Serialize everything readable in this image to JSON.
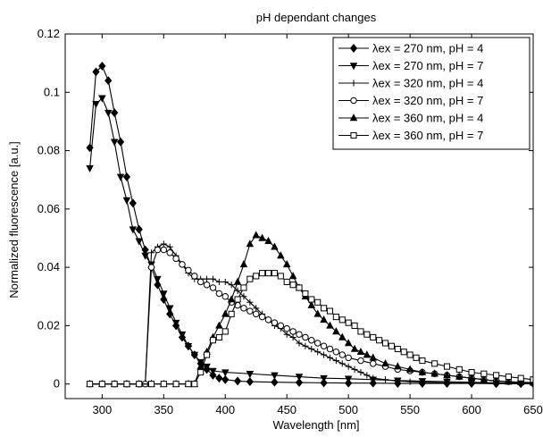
{
  "chart_data": {
    "type": "line",
    "title": "pH dependant changes",
    "xlabel": "Wavelength [nm]",
    "ylabel": "Normalized fluorescence [a.u.]",
    "xlim": [
      270,
      650
    ],
    "ylim": [
      -0.005,
      0.12
    ],
    "xticks": [
      300,
      350,
      400,
      450,
      500,
      550,
      600,
      650
    ],
    "yticks": [
      0,
      0.02,
      0.04,
      0.06,
      0.08,
      0.1,
      0.12
    ],
    "grid": false,
    "legend_position": "top-right",
    "series": [
      {
        "name": "λex = 270 nm, pH = 4",
        "marker": "diamond",
        "points": [
          [
            290,
            0.081
          ],
          [
            295,
            0.107
          ],
          [
            300,
            0.109
          ],
          [
            305,
            0.104
          ],
          [
            310,
            0.093
          ],
          [
            315,
            0.083
          ],
          [
            320,
            0.071
          ],
          [
            325,
            0.062
          ],
          [
            330,
            0.053
          ],
          [
            335,
            0.046
          ],
          [
            340,
            0.04
          ],
          [
            345,
            0.034
          ],
          [
            350,
            0.029
          ],
          [
            355,
            0.024
          ],
          [
            360,
            0.02
          ],
          [
            365,
            0.016
          ],
          [
            370,
            0.013
          ],
          [
            375,
            0.01
          ],
          [
            380,
            0.007
          ],
          [
            385,
            0.005
          ],
          [
            390,
            0.003
          ],
          [
            395,
            0.002
          ],
          [
            400,
            0.0015
          ],
          [
            410,
            0.001
          ],
          [
            420,
            0.0008
          ],
          [
            440,
            0.0006
          ],
          [
            460,
            0.0005
          ],
          [
            480,
            0.0004
          ],
          [
            500,
            0.0003
          ],
          [
            520,
            0.0003
          ],
          [
            540,
            0.0002
          ],
          [
            560,
            0.0002
          ],
          [
            580,
            0.0002
          ],
          [
            600,
            0.0002
          ],
          [
            620,
            0.0001
          ],
          [
            640,
            0.0001
          ],
          [
            650,
            0.0001
          ]
        ]
      },
      {
        "name": "λex = 270 nm, pH = 7",
        "marker": "triangle-down",
        "points": [
          [
            290,
            0.074
          ],
          [
            295,
            0.096
          ],
          [
            300,
            0.098
          ],
          [
            305,
            0.093
          ],
          [
            310,
            0.083
          ],
          [
            315,
            0.071
          ],
          [
            320,
            0.063
          ],
          [
            325,
            0.053
          ],
          [
            330,
            0.049
          ],
          [
            335,
            0.044
          ],
          [
            340,
            0.041
          ],
          [
            345,
            0.036
          ],
          [
            350,
            0.031
          ],
          [
            355,
            0.026
          ],
          [
            360,
            0.021
          ],
          [
            365,
            0.017
          ],
          [
            370,
            0.013
          ],
          [
            375,
            0.01
          ],
          [
            380,
            0.0075
          ],
          [
            385,
            0.006
          ],
          [
            390,
            0.0045
          ],
          [
            400,
            0.004
          ],
          [
            420,
            0.0035
          ],
          [
            440,
            0.003
          ],
          [
            460,
            0.0025
          ],
          [
            480,
            0.002
          ],
          [
            500,
            0.0018
          ],
          [
            520,
            0.0015
          ],
          [
            540,
            0.0012
          ],
          [
            560,
            0.001
          ],
          [
            580,
            0.0008
          ],
          [
            600,
            0.0006
          ],
          [
            620,
            0.0004
          ],
          [
            640,
            0.0003
          ],
          [
            650,
            0.0003
          ]
        ]
      },
      {
        "name": "λex = 320 nm, pH = 4",
        "marker": "plus",
        "points": [
          [
            290,
            0
          ],
          [
            300,
            0
          ],
          [
            310,
            0
          ],
          [
            320,
            0
          ],
          [
            330,
            0
          ],
          [
            335,
            0
          ],
          [
            340,
            0.045
          ],
          [
            345,
            0.047
          ],
          [
            350,
            0.048
          ],
          [
            355,
            0.047
          ],
          [
            360,
            0.044
          ],
          [
            365,
            0.041
          ],
          [
            370,
            0.038
          ],
          [
            375,
            0.036
          ],
          [
            380,
            0.036
          ],
          [
            385,
            0.036
          ],
          [
            390,
            0.036
          ],
          [
            395,
            0.035
          ],
          [
            400,
            0.035
          ],
          [
            405,
            0.034
          ],
          [
            410,
            0.032
          ],
          [
            415,
            0.03
          ],
          [
            420,
            0.028
          ],
          [
            425,
            0.026
          ],
          [
            430,
            0.024
          ],
          [
            435,
            0.022
          ],
          [
            440,
            0.02
          ],
          [
            445,
            0.019
          ],
          [
            450,
            0.017
          ],
          [
            455,
            0.016
          ],
          [
            460,
            0.014
          ],
          [
            465,
            0.013
          ],
          [
            470,
            0.012
          ],
          [
            475,
            0.011
          ],
          [
            480,
            0.01
          ],
          [
            485,
            0.009
          ],
          [
            490,
            0.008
          ],
          [
            495,
            0.007
          ],
          [
            500,
            0.006
          ],
          [
            505,
            0.005
          ],
          [
            510,
            0.004
          ],
          [
            515,
            0.003
          ],
          [
            520,
            0.002
          ],
          [
            530,
            0.0015
          ],
          [
            540,
            0.001
          ],
          [
            550,
            0.0008
          ],
          [
            560,
            0.0006
          ],
          [
            580,
            0.0004
          ],
          [
            600,
            0.0003
          ],
          [
            620,
            0.0002
          ],
          [
            640,
            0.0001
          ],
          [
            650,
            0.0001
          ]
        ]
      },
      {
        "name": "λex = 320 nm, pH = 7",
        "marker": "circle",
        "points": [
          [
            290,
            0
          ],
          [
            300,
            0
          ],
          [
            310,
            0
          ],
          [
            320,
            0
          ],
          [
            330,
            0
          ],
          [
            335,
            0
          ],
          [
            340,
            0.04
          ],
          [
            345,
            0.046
          ],
          [
            350,
            0.046
          ],
          [
            355,
            0.045
          ],
          [
            360,
            0.043
          ],
          [
            365,
            0.041
          ],
          [
            370,
            0.039
          ],
          [
            375,
            0.037
          ],
          [
            380,
            0.035
          ],
          [
            385,
            0.034
          ],
          [
            390,
            0.033
          ],
          [
            395,
            0.031
          ],
          [
            400,
            0.03
          ],
          [
            405,
            0.028
          ],
          [
            410,
            0.027
          ],
          [
            415,
            0.026
          ],
          [
            420,
            0.025
          ],
          [
            425,
            0.024
          ],
          [
            430,
            0.023
          ],
          [
            435,
            0.022
          ],
          [
            440,
            0.021
          ],
          [
            445,
            0.02
          ],
          [
            450,
            0.019
          ],
          [
            455,
            0.018
          ],
          [
            460,
            0.017
          ],
          [
            465,
            0.016
          ],
          [
            470,
            0.015
          ],
          [
            475,
            0.014
          ],
          [
            480,
            0.013
          ],
          [
            485,
            0.012
          ],
          [
            490,
            0.011
          ],
          [
            495,
            0.01
          ],
          [
            500,
            0.009
          ],
          [
            510,
            0.008
          ],
          [
            520,
            0.007
          ],
          [
            530,
            0.006
          ],
          [
            540,
            0.005
          ],
          [
            550,
            0.0045
          ],
          [
            560,
            0.004
          ],
          [
            570,
            0.0035
          ],
          [
            580,
            0.003
          ],
          [
            590,
            0.0025
          ],
          [
            600,
            0.002
          ],
          [
            610,
            0.0015
          ],
          [
            620,
            0.001
          ],
          [
            630,
            0.0008
          ],
          [
            640,
            0.0005
          ],
          [
            650,
            0.0003
          ]
        ]
      },
      {
        "name": "λex = 360 nm, pH = 4",
        "marker": "triangle-up",
        "points": [
          [
            290,
            0
          ],
          [
            300,
            0
          ],
          [
            310,
            0
          ],
          [
            320,
            0
          ],
          [
            330,
            0
          ],
          [
            340,
            0
          ],
          [
            350,
            0
          ],
          [
            360,
            0
          ],
          [
            370,
            0
          ],
          [
            375,
            0
          ],
          [
            380,
            0.006
          ],
          [
            385,
            0.011
          ],
          [
            390,
            0.016
          ],
          [
            395,
            0.02
          ],
          [
            400,
            0.024
          ],
          [
            405,
            0.029
          ],
          [
            410,
            0.035
          ],
          [
            415,
            0.041
          ],
          [
            420,
            0.048
          ],
          [
            425,
            0.051
          ],
          [
            430,
            0.05
          ],
          [
            435,
            0.049
          ],
          [
            440,
            0.047
          ],
          [
            445,
            0.044
          ],
          [
            450,
            0.041
          ],
          [
            455,
            0.037
          ],
          [
            460,
            0.033
          ],
          [
            465,
            0.03
          ],
          [
            470,
            0.027
          ],
          [
            475,
            0.024
          ],
          [
            480,
            0.022
          ],
          [
            485,
            0.02
          ],
          [
            490,
            0.018
          ],
          [
            495,
            0.016
          ],
          [
            500,
            0.014
          ],
          [
            505,
            0.012
          ],
          [
            510,
            0.011
          ],
          [
            515,
            0.01
          ],
          [
            520,
            0.009
          ],
          [
            530,
            0.007
          ],
          [
            540,
            0.006
          ],
          [
            550,
            0.005
          ],
          [
            560,
            0.004
          ],
          [
            570,
            0.0035
          ],
          [
            580,
            0.003
          ],
          [
            590,
            0.0025
          ],
          [
            600,
            0.002
          ],
          [
            610,
            0.0015
          ],
          [
            620,
            0.001
          ],
          [
            630,
            0.0008
          ],
          [
            640,
            0.0006
          ],
          [
            650,
            0.0005
          ]
        ]
      },
      {
        "name": "λex = 360 nm, pH = 7",
        "marker": "square",
        "points": [
          [
            290,
            0
          ],
          [
            300,
            0
          ],
          [
            310,
            0
          ],
          [
            320,
            0
          ],
          [
            330,
            0
          ],
          [
            340,
            0
          ],
          [
            350,
            0
          ],
          [
            360,
            0
          ],
          [
            370,
            0
          ],
          [
            375,
            0
          ],
          [
            380,
            0.004
          ],
          [
            385,
            0.01
          ],
          [
            390,
            0.015
          ],
          [
            395,
            0.016
          ],
          [
            400,
            0.018
          ],
          [
            405,
            0.024
          ],
          [
            410,
            0.029
          ],
          [
            415,
            0.033
          ],
          [
            420,
            0.036
          ],
          [
            425,
            0.037
          ],
          [
            430,
            0.038
          ],
          [
            435,
            0.038
          ],
          [
            440,
            0.038
          ],
          [
            445,
            0.037
          ],
          [
            450,
            0.035
          ],
          [
            455,
            0.034
          ],
          [
            460,
            0.033
          ],
          [
            465,
            0.031
          ],
          [
            470,
            0.029
          ],
          [
            475,
            0.028
          ],
          [
            480,
            0.026
          ],
          [
            485,
            0.025
          ],
          [
            490,
            0.023
          ],
          [
            495,
            0.022
          ],
          [
            500,
            0.021
          ],
          [
            505,
            0.02
          ],
          [
            510,
            0.018
          ],
          [
            515,
            0.017
          ],
          [
            520,
            0.016
          ],
          [
            525,
            0.015
          ],
          [
            530,
            0.014
          ],
          [
            535,
            0.013
          ],
          [
            540,
            0.012
          ],
          [
            545,
            0.011
          ],
          [
            550,
            0.01
          ],
          [
            555,
            0.009
          ],
          [
            560,
            0.008
          ],
          [
            570,
            0.007
          ],
          [
            580,
            0.006
          ],
          [
            590,
            0.005
          ],
          [
            600,
            0.004
          ],
          [
            610,
            0.0035
          ],
          [
            620,
            0.003
          ],
          [
            630,
            0.0025
          ],
          [
            640,
            0.002
          ],
          [
            650,
            0.0015
          ]
        ]
      }
    ]
  }
}
